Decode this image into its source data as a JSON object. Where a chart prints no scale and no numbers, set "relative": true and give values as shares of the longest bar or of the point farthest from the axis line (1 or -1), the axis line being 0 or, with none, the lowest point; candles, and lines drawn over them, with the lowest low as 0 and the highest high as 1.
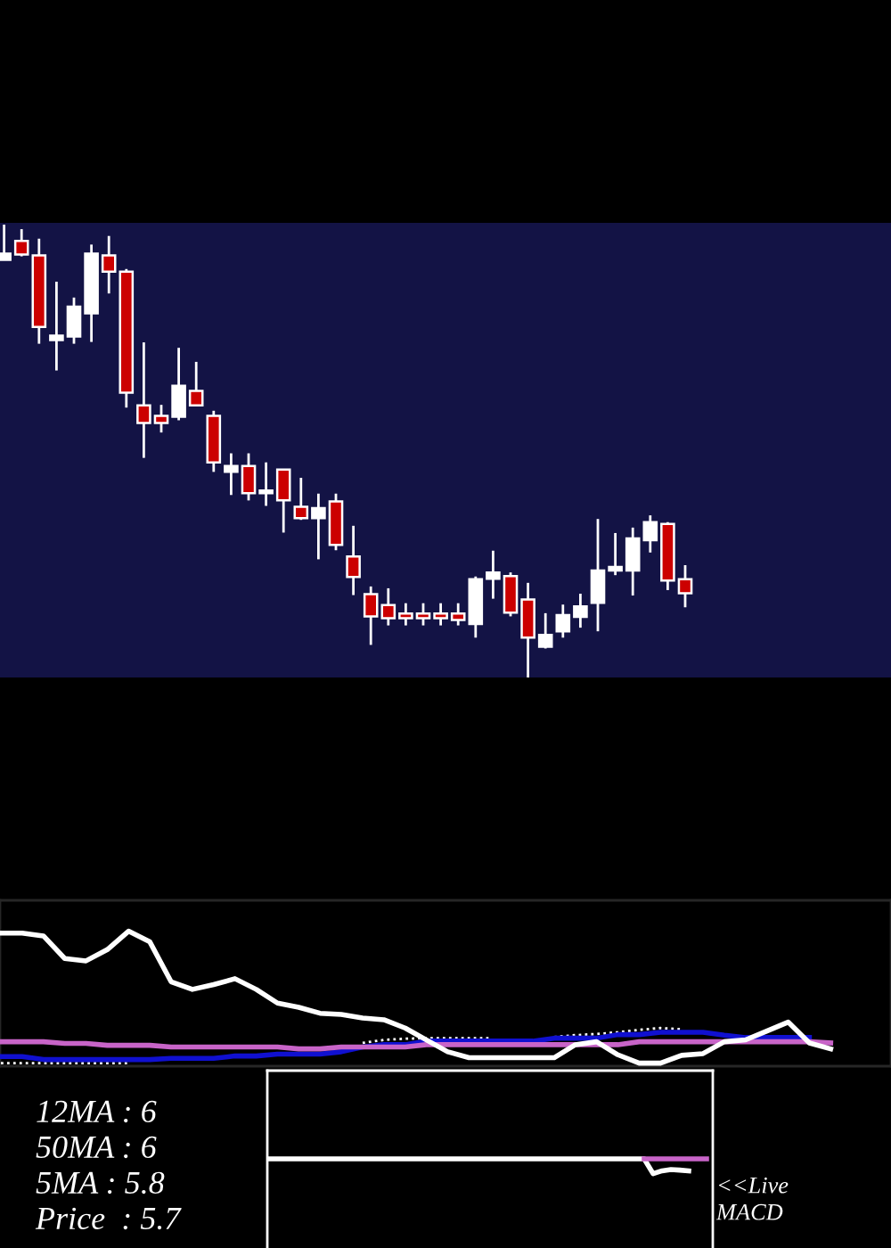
{
  "chart_data": [
    {
      "type": "candlestick",
      "relative": true,
      "categories": [
        null,
        null,
        null,
        null,
        null,
        null,
        null,
        null,
        null,
        null,
        null,
        null,
        null,
        null,
        null,
        null,
        null,
        null,
        null,
        null,
        null,
        null,
        null,
        null,
        null,
        null,
        null,
        null,
        null,
        null,
        null,
        null,
        null,
        null,
        null,
        null,
        null,
        null,
        null,
        null
      ],
      "ohlc": [
        [
          0.922,
          1.0,
          0.922,
          0.936
        ],
        [
          0.964,
          0.99,
          0.93,
          0.934
        ],
        [
          0.932,
          0.969,
          0.737,
          0.774
        ],
        [
          0.745,
          0.874,
          0.678,
          0.755
        ],
        [
          0.753,
          0.839,
          0.737,
          0.819
        ],
        [
          0.804,
          0.956,
          0.741,
          0.936
        ],
        [
          0.932,
          0.975,
          0.848,
          0.896
        ],
        [
          0.896,
          0.902,
          0.596,
          0.629
        ],
        [
          0.601,
          0.74,
          0.485,
          0.562
        ],
        [
          0.578,
          0.602,
          0.541,
          0.562
        ],
        [
          0.576,
          0.728,
          0.568,
          0.644
        ],
        [
          0.633,
          0.697,
          0.601,
          0.601
        ],
        [
          0.578,
          0.589,
          0.454,
          0.475
        ],
        [
          0.454,
          0.495,
          0.403,
          0.467
        ],
        [
          0.467,
          0.495,
          0.391,
          0.407
        ],
        [
          0.407,
          0.475,
          0.379,
          0.413
        ],
        [
          0.459,
          0.459,
          0.32,
          0.391
        ],
        [
          0.377,
          0.441,
          0.348,
          0.352
        ],
        [
          0.352,
          0.406,
          0.261,
          0.374
        ],
        [
          0.389,
          0.406,
          0.281,
          0.293
        ],
        [
          0.267,
          0.335,
          0.182,
          0.222
        ],
        [
          0.184,
          0.201,
          0.072,
          0.135
        ],
        [
          0.16,
          0.197,
          0.115,
          0.131
        ],
        [
          0.141,
          0.164,
          0.115,
          0.131
        ],
        [
          0.141,
          0.164,
          0.115,
          0.131
        ],
        [
          0.141,
          0.164,
          0.115,
          0.131
        ],
        [
          0.141,
          0.164,
          0.115,
          0.127
        ],
        [
          0.118,
          0.223,
          0.088,
          0.217
        ],
        [
          0.218,
          0.28,
          0.174,
          0.232
        ],
        [
          0.224,
          0.232,
          0.135,
          0.143
        ],
        [
          0.172,
          0.209,
          0.0,
          0.088
        ],
        [
          0.068,
          0.142,
          0.064,
          0.094
        ],
        [
          0.102,
          0.161,
          0.088,
          0.138
        ],
        [
          0.134,
          0.185,
          0.11,
          0.157
        ],
        [
          0.165,
          0.35,
          0.102,
          0.236
        ],
        [
          0.236,
          0.319,
          0.226,
          0.244
        ],
        [
          0.236,
          0.331,
          0.181,
          0.307
        ],
        [
          0.303,
          0.358,
          0.276,
          0.343
        ],
        [
          0.339,
          0.343,
          0.193,
          0.214
        ],
        [
          0.217,
          0.248,
          0.155,
          0.186
        ]
      ],
      "colors": [
        "#ffffff",
        "#cc0000",
        "#cc0000",
        "#ffffff",
        "#ffffff",
        "#ffffff",
        "#cc0000",
        "#cc0000",
        "#cc0000",
        "#cc0000",
        "#ffffff",
        "#cc0000",
        "#cc0000",
        "#ffffff",
        "#cc0000",
        "#ffffff",
        "#cc0000",
        "#cc0000",
        "#ffffff",
        "#cc0000",
        "#cc0000",
        "#cc0000",
        "#cc0000",
        "#cc0000",
        "#cc0000",
        "#cc0000",
        "#cc0000",
        "#ffffff",
        "#ffffff",
        "#cc0000",
        "#cc0000",
        "#ffffff",
        "#ffffff",
        "#ffffff",
        "#ffffff",
        "#ffffff",
        "#ffffff",
        "#ffffff",
        "#cc0000",
        "#cc0000"
      ]
    },
    {
      "type": "line",
      "relative": true,
      "categories": [
        null,
        null,
        null,
        null,
        null,
        null,
        null,
        null,
        null,
        null,
        null,
        null,
        null,
        null,
        null,
        null,
        null,
        null,
        null,
        null,
        null,
        null,
        null,
        null,
        null,
        null,
        null,
        null,
        null,
        null,
        null,
        null,
        null,
        null,
        null,
        null,
        null,
        null,
        null,
        null
      ],
      "series": [
        {
          "color": "#ffffff",
          "line_style": "dotted",
          "values": [
            0.0,
            0.0,
            0.0,
            0.0,
            0.0,
            0.0,
            0.0,
            null,
            null,
            null,
            null,
            null,
            null,
            null,
            null,
            null,
            null,
            0.153,
            0.176,
            0.185,
            0.189,
            0.189,
            0.189,
            0.189,
            null,
            null,
            0.198,
            0.212,
            0.221,
            0.234,
            0.252,
            0.266,
            0.257,
            null,
            null,
            null,
            null,
            null,
            null,
            null
          ]
        },
        {
          "color": "#1010d0",
          "line_style": "solid",
          "values": [
            0.05,
            0.05,
            0.027,
            0.027,
            0.027,
            0.027,
            0.027,
            0.027,
            0.036,
            0.036,
            0.036,
            0.054,
            0.054,
            0.068,
            0.068,
            0.068,
            0.086,
            0.122,
            0.14,
            0.14,
            0.167,
            0.167,
            0.167,
            0.167,
            0.167,
            0.167,
            0.189,
            0.189,
            0.189,
            0.216,
            0.216,
            0.234,
            0.234,
            0.234,
            0.212,
            0.194,
            0.194,
            0.194,
            0.194,
            null
          ]
        },
        {
          "color": "#c864c8",
          "line_style": "solid",
          "values": [
            0.162,
            0.162,
            0.162,
            0.149,
            0.149,
            0.135,
            0.135,
            0.135,
            0.122,
            0.122,
            0.122,
            0.122,
            0.122,
            0.122,
            0.108,
            0.108,
            0.122,
            0.122,
            0.122,
            0.122,
            0.14,
            0.14,
            0.14,
            0.14,
            0.14,
            0.14,
            0.14,
            0.14,
            0.14,
            0.14,
            0.162,
            0.162,
            0.162,
            0.162,
            0.162,
            0.162,
            0.162,
            0.162,
            0.162,
            0.153
          ]
        },
        {
          "color": "#ffffff",
          "line_style": "solid",
          "values": [
            0.986,
            0.986,
            0.964,
            0.793,
            0.775,
            0.86,
            1.0,
            0.919,
            0.617,
            0.559,
            0.595,
            0.64,
            0.559,
            0.455,
            0.423,
            0.378,
            0.369,
            0.342,
            0.329,
            0.266,
            0.176,
            0.086,
            0.041,
            0.041,
            0.041,
            0.041,
            0.041,
            0.14,
            0.162,
            0.063,
            0.0,
            0.0,
            0.059,
            0.072,
            0.162,
            0.176,
            0.243,
            0.311,
            0.153,
            0.108
          ]
        }
      ],
      "annotations": [
        "12MA : 6",
        "50MA : 6",
        "5MA : 5.8",
        "Price  : 5.7"
      ]
    },
    {
      "type": "line",
      "relative": true,
      "categories": [
        null,
        null,
        null,
        null,
        null,
        null,
        null,
        null,
        null,
        null,
        null,
        null,
        null,
        null,
        null,
        null,
        null,
        null,
        null,
        null,
        null,
        null,
        null,
        null,
        null,
        null,
        null,
        null,
        null,
        null,
        null,
        null,
        null,
        null,
        null,
        null,
        null,
        null,
        null,
        null,
        null,
        null,
        null,
        null,
        null,
        null,
        null,
        null,
        null,
        null
      ],
      "series": [
        {
          "color": "#ffffff",
          "values": [
            1,
            1,
            1,
            1,
            1,
            1,
            1,
            1,
            1,
            1,
            1,
            1,
            1,
            1,
            1,
            1,
            1,
            1,
            1,
            1,
            1,
            1,
            1,
            1,
            1,
            1,
            1,
            1,
            1,
            1,
            1,
            1,
            1,
            1,
            1,
            1,
            1,
            1,
            1,
            1,
            1,
            1,
            1,
            0,
            0.19,
            0.28,
            0.24,
            0.19,
            null,
            null
          ]
        },
        {
          "color": "#c864c8",
          "values": [
            null,
            null,
            null,
            null,
            null,
            null,
            null,
            null,
            null,
            null,
            null,
            null,
            null,
            null,
            null,
            null,
            null,
            null,
            null,
            null,
            null,
            null,
            null,
            null,
            null,
            null,
            null,
            null,
            null,
            null,
            null,
            null,
            null,
            null,
            null,
            null,
            null,
            null,
            null,
            null,
            null,
            null,
            1,
            1,
            1,
            1,
            1,
            1,
            1,
            1
          ]
        }
      ],
      "annotations": [
        "<<Live",
        "MACD"
      ]
    }
  ]
}
